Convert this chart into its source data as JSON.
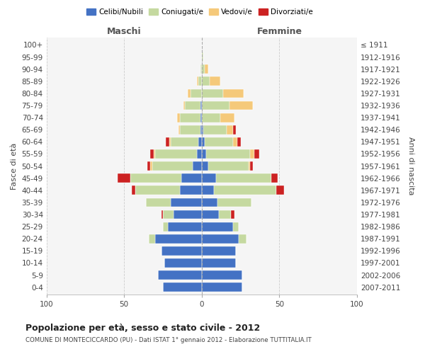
{
  "age_groups": [
    "0-4",
    "5-9",
    "10-14",
    "15-19",
    "20-24",
    "25-29",
    "30-34",
    "35-39",
    "40-44",
    "45-49",
    "50-54",
    "55-59",
    "60-64",
    "65-69",
    "70-74",
    "75-79",
    "80-84",
    "85-89",
    "90-94",
    "95-99",
    "100+"
  ],
  "birth_years": [
    "2007-2011",
    "2002-2006",
    "1997-2001",
    "1992-1996",
    "1987-1991",
    "1982-1986",
    "1977-1981",
    "1972-1976",
    "1967-1971",
    "1962-1966",
    "1957-1961",
    "1952-1956",
    "1947-1951",
    "1942-1946",
    "1937-1941",
    "1932-1936",
    "1927-1931",
    "1922-1926",
    "1917-1921",
    "1912-1916",
    "≤ 1911"
  ],
  "maschi": {
    "celibi": [
      25,
      28,
      24,
      26,
      30,
      22,
      18,
      20,
      14,
      13,
      6,
      3,
      2,
      1,
      1,
      1,
      0,
      0,
      0,
      0,
      0
    ],
    "coniugati": [
      0,
      0,
      0,
      0,
      4,
      3,
      7,
      16,
      29,
      33,
      26,
      27,
      18,
      13,
      13,
      10,
      7,
      2,
      1,
      0,
      0
    ],
    "vedovi": [
      0,
      0,
      0,
      0,
      0,
      0,
      0,
      0,
      0,
      0,
      1,
      1,
      1,
      1,
      2,
      1,
      2,
      1,
      0,
      0,
      0
    ],
    "divorziati": [
      0,
      0,
      0,
      0,
      0,
      0,
      1,
      0,
      2,
      8,
      2,
      2,
      2,
      0,
      0,
      0,
      0,
      0,
      0,
      0,
      0
    ]
  },
  "femmine": {
    "nubili": [
      26,
      26,
      22,
      22,
      24,
      20,
      11,
      10,
      8,
      9,
      4,
      3,
      2,
      1,
      0,
      0,
      0,
      0,
      0,
      0,
      0
    ],
    "coniugate": [
      0,
      0,
      0,
      0,
      5,
      4,
      8,
      22,
      40,
      36,
      26,
      28,
      18,
      15,
      12,
      18,
      14,
      5,
      2,
      1,
      0
    ],
    "vedove": [
      0,
      0,
      0,
      0,
      0,
      0,
      0,
      0,
      0,
      0,
      1,
      3,
      3,
      4,
      9,
      15,
      13,
      7,
      2,
      0,
      0
    ],
    "divorziate": [
      0,
      0,
      0,
      0,
      0,
      0,
      2,
      0,
      5,
      4,
      2,
      3,
      2,
      2,
      0,
      0,
      0,
      0,
      0,
      0,
      0
    ]
  },
  "colors": {
    "celibi": "#4472c4",
    "coniugati": "#c5d9a0",
    "vedovi": "#f5c97a",
    "divorziati": "#cc2222"
  },
  "xlim": 100,
  "title": "Popolazione per età, sesso e stato civile - 2012",
  "subtitle": "COMUNE DI MONTECICCARDO (PU) - Dati ISTAT 1° gennaio 2012 - Elaborazione TUTTITALIA.IT",
  "ylabel_left": "Fasce di età",
  "ylabel_right": "Anni di nascita",
  "xlabel_maschi": "Maschi",
  "xlabel_femmine": "Femmine",
  "legend_labels": [
    "Celibi/Nubili",
    "Coniugati/e",
    "Vedovi/e",
    "Divorziati/e"
  ]
}
